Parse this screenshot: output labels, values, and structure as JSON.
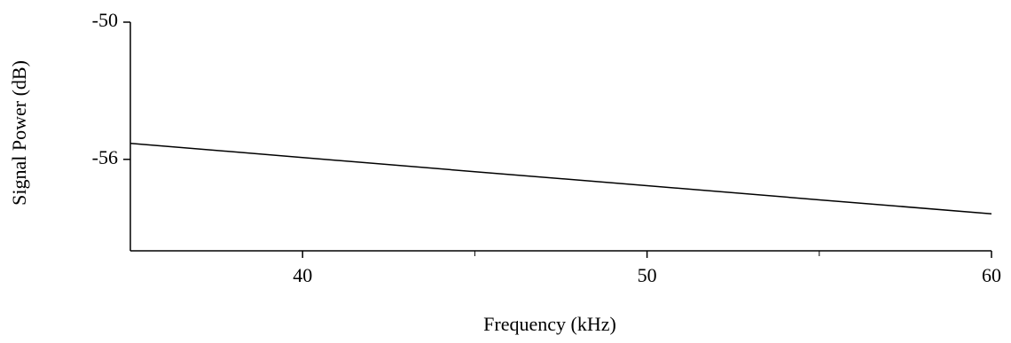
{
  "chart_data": {
    "type": "line",
    "x_label": "Frequency (kHz)",
    "y_label": "Signal Power (dB)",
    "x": [
      35,
      40,
      45,
      50,
      55,
      60
    ],
    "series": [
      {
        "name": "Signal Power",
        "color": "#000000",
        "values": [
          -55.3,
          -55.92,
          -56.54,
          -57.15,
          -57.77,
          -58.38
        ]
      }
    ],
    "xlim": [
      35,
      60
    ],
    "xticks": [
      40,
      50,
      60
    ],
    "xminor_ticks": [
      45,
      55
    ],
    "ylim": [
      -60,
      -50
    ],
    "yticks": [
      -50,
      -56
    ]
  }
}
